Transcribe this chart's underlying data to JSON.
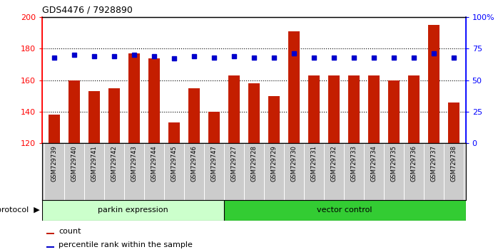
{
  "title": "GDS4476 / 7928890",
  "samples": [
    "GSM729739",
    "GSM729740",
    "GSM729741",
    "GSM729742",
    "GSM729743",
    "GSM729744",
    "GSM729745",
    "GSM729746",
    "GSM729747",
    "GSM729727",
    "GSM729728",
    "GSM729729",
    "GSM729730",
    "GSM729731",
    "GSM729732",
    "GSM729733",
    "GSM729734",
    "GSM729735",
    "GSM729736",
    "GSM729737",
    "GSM729738"
  ],
  "counts": [
    138,
    160,
    153,
    155,
    177,
    174,
    133,
    155,
    140,
    163,
    158,
    150,
    191,
    163,
    163,
    163,
    163,
    160,
    163,
    195,
    146
  ],
  "percentile_ranks": [
    68,
    70,
    69,
    69,
    70,
    69,
    67,
    69,
    68,
    69,
    68,
    68,
    71,
    68,
    68,
    68,
    68,
    68,
    68,
    71,
    68
  ],
  "parkin_count": 9,
  "vector_count": 12,
  "parkin_label": "parkin expression",
  "vector_label": "vector control",
  "protocol_label": "protocol",
  "bar_color": "#C41E00",
  "dot_color": "#0000CC",
  "parkin_bg": "#ccffcc",
  "vector_bg": "#33cc33",
  "ylim": [
    120,
    200
  ],
  "yticks": [
    120,
    140,
    160,
    180,
    200
  ],
  "y2lim": [
    0,
    100
  ],
  "y2ticks": [
    0,
    25,
    50,
    75,
    100
  ],
  "y2ticklabels": [
    "0",
    "25",
    "50",
    "75",
    "100%"
  ],
  "xtick_bg": "#cccccc",
  "legend_count": "count",
  "legend_pct": "percentile rank within the sample"
}
